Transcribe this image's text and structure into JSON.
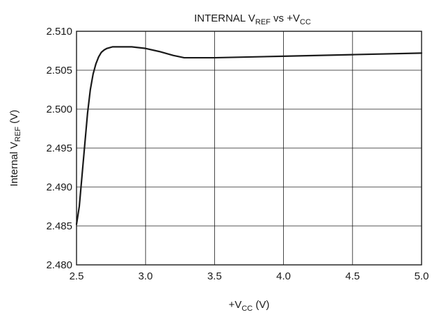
{
  "chart_data": {
    "type": "line",
    "title": {
      "prefix": "INTERNAL V",
      "prefix_sub": "REF",
      "middle": " vs +V",
      "middle_sub": "CC",
      "suffix": ""
    },
    "xlabel": {
      "prefix": "+V",
      "sub": "CC",
      "suffix": " (V)"
    },
    "ylabel": {
      "prefix": "Internal V",
      "sub": "REF",
      "suffix": " (V)"
    },
    "xlim": [
      2.5,
      5.0
    ],
    "ylim": [
      2.48,
      2.51
    ],
    "x_ticks": [
      2.5,
      3.0,
      3.5,
      4.0,
      4.5,
      5.0
    ],
    "x_tick_labels": [
      "2.5",
      "3.0",
      "3.5",
      "4.0",
      "4.5",
      "5.0"
    ],
    "y_ticks": [
      2.48,
      2.485,
      2.49,
      2.495,
      2.5,
      2.505,
      2.51
    ],
    "y_tick_labels": [
      "2.480",
      "2.485",
      "2.490",
      "2.495",
      "2.500",
      "2.505",
      "2.510"
    ],
    "grid": true,
    "series": [
      {
        "color": "#1a1a1a",
        "x": [
          2.5,
          2.52,
          2.54,
          2.56,
          2.58,
          2.6,
          2.62,
          2.64,
          2.66,
          2.68,
          2.7,
          2.72,
          2.74,
          2.76,
          2.78,
          2.8,
          2.85,
          2.9,
          2.95,
          3.0,
          3.1,
          3.2,
          3.28,
          3.5,
          4.0,
          4.5,
          5.0
        ],
        "y": [
          2.4852,
          2.4875,
          2.4915,
          2.4955,
          2.4995,
          2.5025,
          2.5045,
          2.5058,
          2.5067,
          2.5073,
          2.5076,
          2.5078,
          2.5079,
          2.508,
          2.508,
          2.508,
          2.508,
          2.508,
          2.5079,
          2.5078,
          2.5074,
          2.5069,
          2.5066,
          2.5066,
          2.5068,
          2.507,
          2.5072
        ]
      }
    ]
  }
}
